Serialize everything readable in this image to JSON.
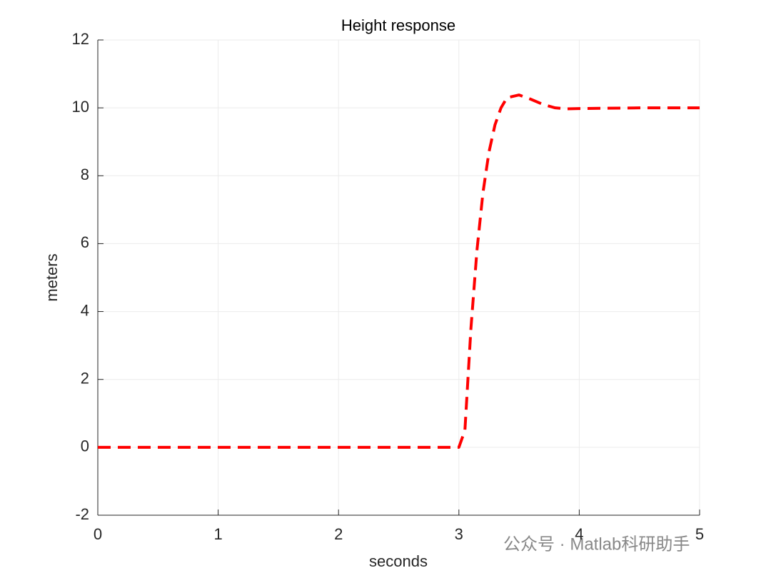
{
  "chart_data": {
    "type": "line",
    "title": "Height response",
    "xlabel": "seconds",
    "ylabel": "meters",
    "x": [
      0,
      1,
      2,
      3,
      3.05,
      3.1,
      3.15,
      3.2,
      3.25,
      3.3,
      3.35,
      3.4,
      3.5,
      3.6,
      3.7,
      3.8,
      3.9,
      4.0,
      4.5,
      5
    ],
    "values": [
      0,
      0,
      0,
      0,
      0.5,
      3.5,
      5.8,
      7.5,
      8.7,
      9.5,
      10.0,
      10.3,
      10.38,
      10.25,
      10.1,
      10.0,
      9.97,
      9.98,
      10,
      10
    ],
    "color": "#ff0000",
    "line_style": "dashed",
    "xlim": [
      0,
      5
    ],
    "xticks": [
      0,
      1,
      2,
      3,
      4,
      5
    ],
    "ylim": [
      -2,
      12
    ],
    "yticks": [
      -2,
      0,
      2,
      4,
      6,
      8,
      10,
      12
    ],
    "grid": true,
    "watermark": "公众号 · Matlab科研助手"
  }
}
